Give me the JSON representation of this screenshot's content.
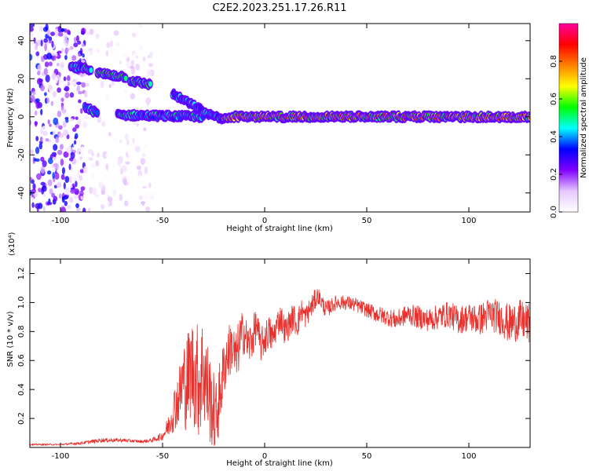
{
  "figure": {
    "title": "C2E2.2023.251.17.26.R11"
  },
  "colors": {
    "snr_line": "#e8302c",
    "axis": "#000000",
    "background": "#ffffff"
  },
  "chart_data": [
    {
      "type": "heatmap",
      "xlabel": "Height of straight line (km)",
      "ylabel": "Frequency (Hz)",
      "xlim": [
        -115,
        130
      ],
      "ylim": [
        -50,
        49
      ],
      "xticks": [
        -100,
        -50,
        0,
        50,
        100
      ],
      "yticks": [
        -40,
        -20,
        0,
        20,
        40
      ],
      "colorbar": {
        "label": "Normalized spectral amplitude",
        "range": [
          0,
          1
        ],
        "ticks": [
          0.0,
          0.2,
          0.4,
          0.6,
          0.8
        ],
        "colormap": [
          "#ffffff",
          "#e6c8ff",
          "#8000ff",
          "#0000ff",
          "#00ffff",
          "#00ff00",
          "#ffff00",
          "#ff8000",
          "#ff0000",
          "#ff00a0"
        ]
      },
      "features": [
        {
          "x_range": [
            -115,
            -88
          ],
          "y_range": [
            -50,
            49
          ],
          "amplitude": 0.15,
          "kind": "noise"
        },
        {
          "x_range": [
            -88,
            -55
          ],
          "y_range": [
            -50,
            49
          ],
          "amplitude": 0.05,
          "kind": "noise"
        },
        {
          "x": [
            -95,
            -85
          ],
          "y": [
            26,
            25
          ],
          "amplitude": 0.45
        },
        {
          "x": [
            -82,
            -68
          ],
          "y": [
            23,
            21
          ],
          "amplitude": 0.5
        },
        {
          "x": [
            -66,
            -56
          ],
          "y": [
            19,
            17
          ],
          "amplitude": 0.5
        },
        {
          "x": [
            -45,
            -30
          ],
          "y": [
            12,
            3
          ],
          "amplitude": 0.4
        },
        {
          "x": [
            -88,
            -82
          ],
          "y": [
            5,
            2
          ],
          "amplitude": 0.45
        },
        {
          "x": [
            -72,
            -30
          ],
          "y": [
            1,
            0
          ],
          "amplitude": 0.45
        },
        {
          "x": [
            -30,
            -20
          ],
          "y": [
            2,
            -1
          ],
          "amplitude": 0.45
        },
        {
          "x": [
            -20,
            130
          ],
          "y": [
            0,
            0
          ],
          "amplitude": 0.7
        }
      ]
    },
    {
      "type": "line",
      "xlabel": "Height of straight line (km)",
      "ylabel": "SNR (10 * v/v)",
      "y_multiplier": "(x10⁴)",
      "xlim": [
        -115,
        130
      ],
      "ylim": [
        0,
        1.3
      ],
      "xticks": [
        -100,
        -50,
        0,
        50,
        100
      ],
      "yticks": [
        0.2,
        0.4,
        0.6,
        0.8,
        1.0,
        1.2
      ],
      "series": [
        {
          "values_x": [
            -115,
            -100,
            -90,
            -80,
            -70,
            -60,
            -55,
            -50,
            -47,
            -45,
            -42,
            -40,
            -38,
            -36,
            -34,
            -32,
            -30,
            -28,
            -26,
            -24,
            -22,
            -20,
            -18,
            -16,
            -14,
            -12,
            -10,
            -8,
            -6,
            -4,
            -2,
            0,
            2,
            4,
            6,
            8,
            10,
            12,
            14,
            16,
            18,
            20,
            22,
            24,
            26,
            28,
            30,
            35,
            40,
            45,
            50,
            55,
            60,
            65,
            70,
            75,
            80,
            85,
            90,
            95,
            100,
            105,
            110,
            115,
            120,
            125,
            130
          ],
          "values_y": [
            0.02,
            0.02,
            0.03,
            0.05,
            0.05,
            0.04,
            0.05,
            0.08,
            0.15,
            0.25,
            0.35,
            0.45,
            0.45,
            0.55,
            0.5,
            0.45,
            0.55,
            0.4,
            0.3,
            0.2,
            0.35,
            0.55,
            0.65,
            0.7,
            0.6,
            0.75,
            0.8,
            0.7,
            0.75,
            0.85,
            0.7,
            0.75,
            0.8,
            0.75,
            0.85,
            0.9,
            0.8,
            0.85,
            0.9,
            0.85,
            0.95,
            0.9,
            0.95,
            1.0,
            1.05,
            1.0,
            0.95,
            1.0,
            1.0,
            0.98,
            0.95,
            0.92,
            0.9,
            0.88,
            0.92,
            0.9,
            0.88,
            0.9,
            0.92,
            0.88,
            0.9,
            0.88,
            0.92,
            0.9,
            0.85,
            0.88,
            0.85
          ],
          "noise": [
            0.005,
            0.005,
            0.01,
            0.015,
            0.012,
            0.01,
            0.015,
            0.03,
            0.08,
            0.15,
            0.2,
            0.3,
            0.35,
            0.35,
            0.4,
            0.4,
            0.4,
            0.35,
            0.3,
            0.25,
            0.25,
            0.2,
            0.2,
            0.18,
            0.2,
            0.18,
            0.15,
            0.15,
            0.15,
            0.12,
            0.12,
            0.12,
            0.12,
            0.12,
            0.1,
            0.1,
            0.1,
            0.1,
            0.1,
            0.1,
            0.08,
            0.08,
            0.08,
            0.08,
            0.06,
            0.06,
            0.06,
            0.05,
            0.05,
            0.05,
            0.05,
            0.06,
            0.06,
            0.07,
            0.07,
            0.08,
            0.08,
            0.09,
            0.09,
            0.1,
            0.1,
            0.11,
            0.12,
            0.12,
            0.14,
            0.14,
            0.14
          ]
        }
      ]
    }
  ]
}
